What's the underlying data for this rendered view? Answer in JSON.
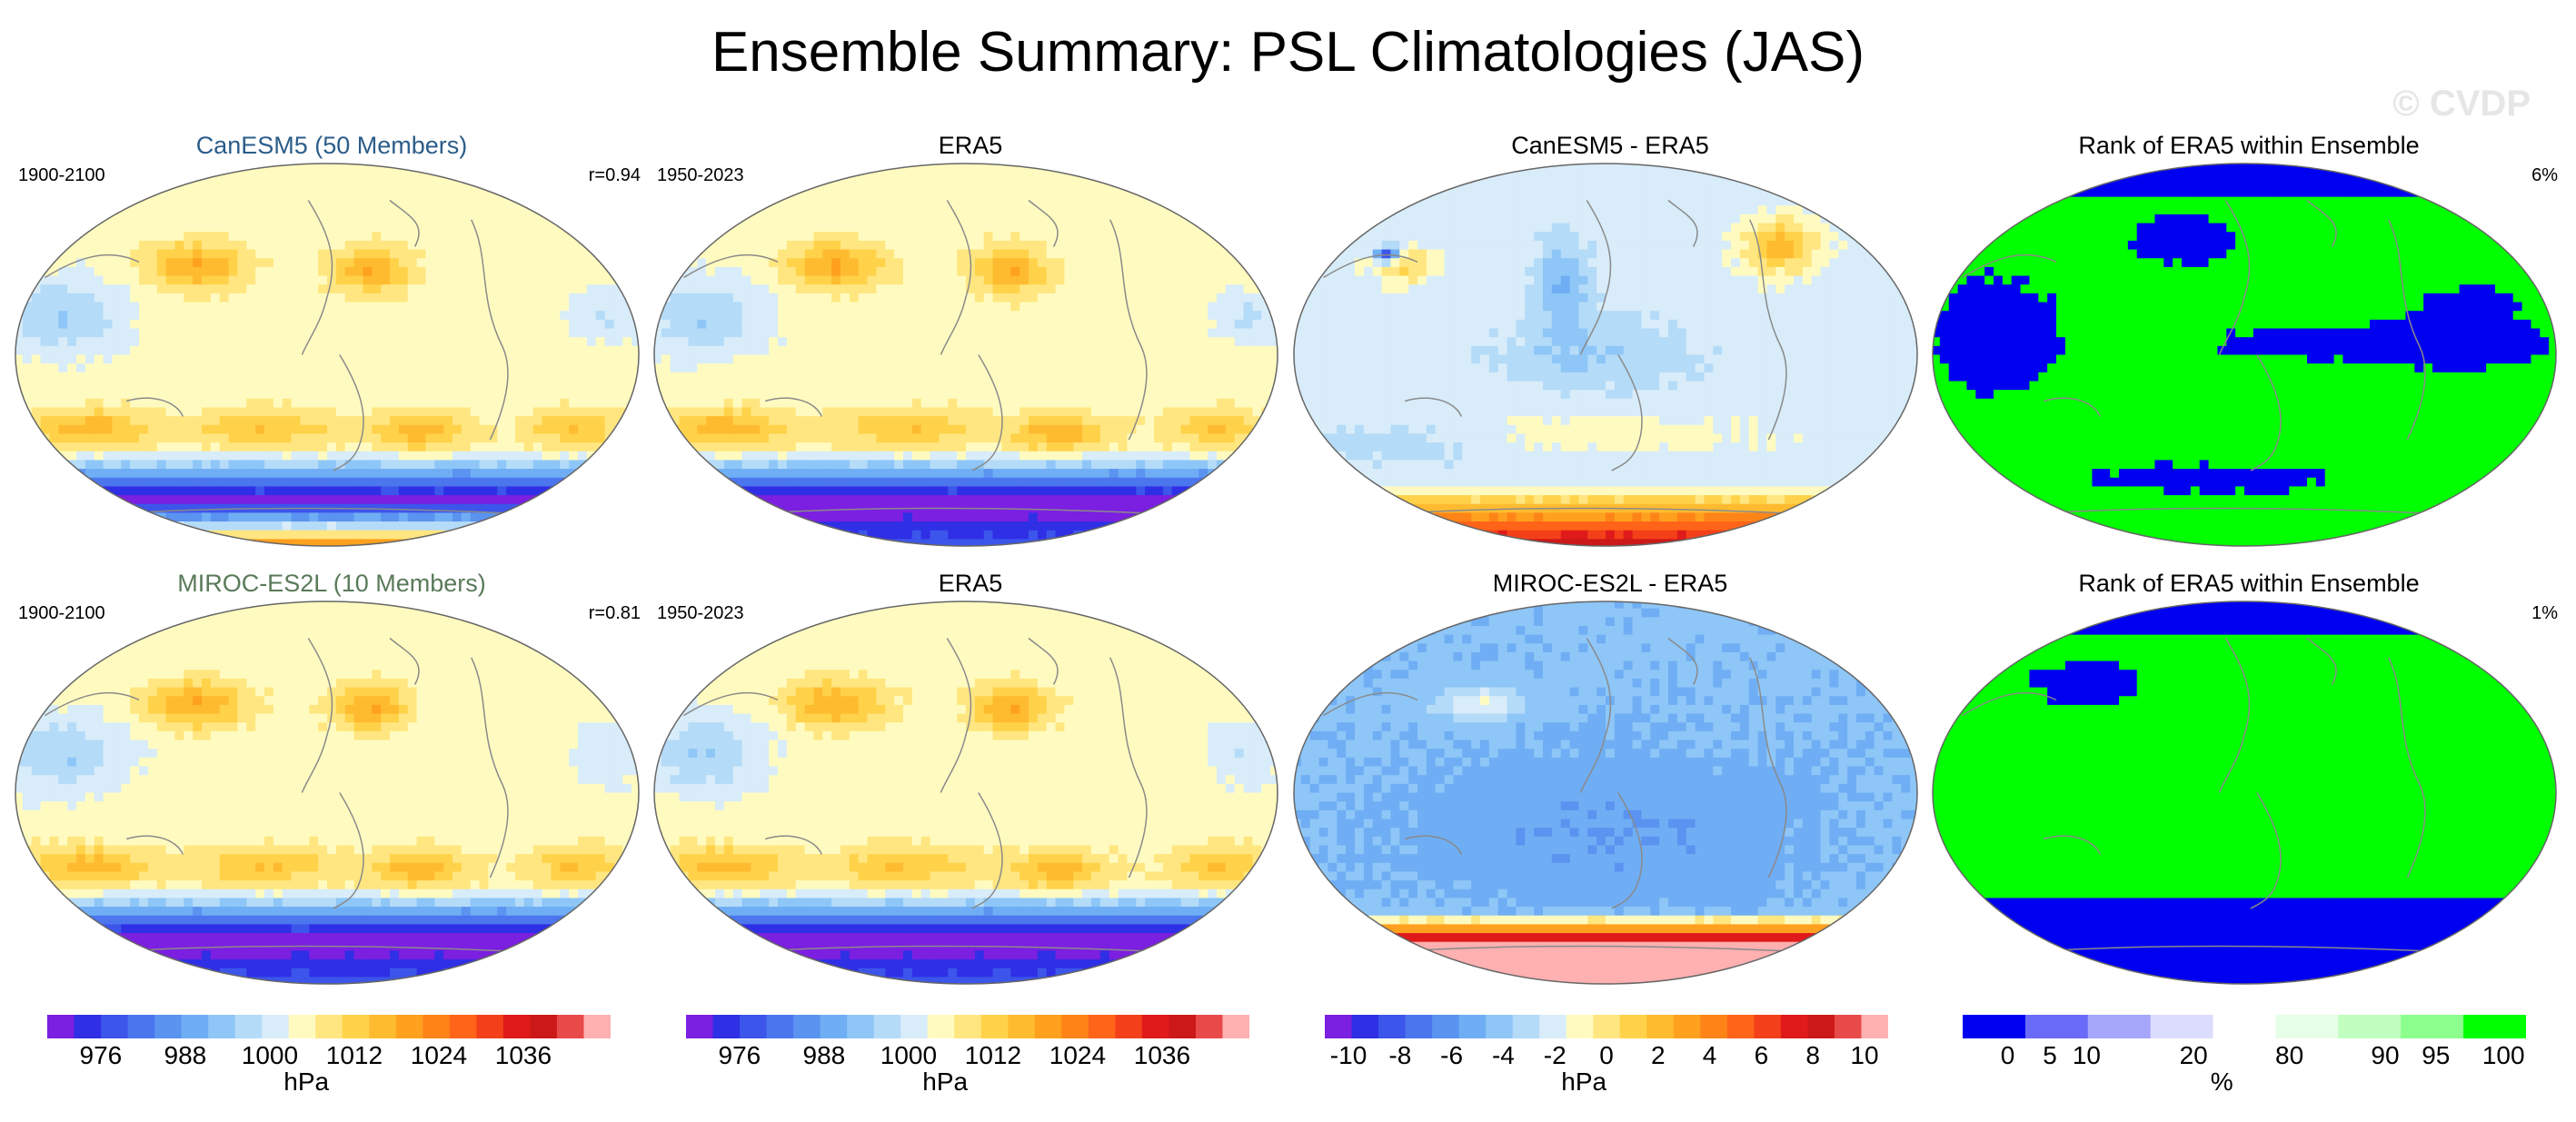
{
  "title": "Ensemble Summary: PSL Climatologies (JAS)",
  "watermark": "© CVDP",
  "colors": {
    "psl_scale": [
      "#7b1fe0",
      "#2f2fe6",
      "#3c55ea",
      "#4b76ee",
      "#5a93f0",
      "#6faef4",
      "#8ec6f7",
      "#b4dbf8",
      "#d8ecf9",
      "#fffbc0",
      "#ffe680",
      "#ffd24a",
      "#ffbb30",
      "#ffa01e",
      "#ff8418",
      "#ff6418",
      "#f4401a",
      "#e01a1a",
      "#cc1818",
      "#e84a4a",
      "#ffb0b0"
    ],
    "rank_scale": [
      "#0000f0",
      "#6a6af8",
      "#a6a6fa",
      "#dcdcfc",
      "#ffffff",
      "#e6ffe6",
      "#c0ffc0",
      "#8cff8c",
      "#00ff00"
    ],
    "land_line": "#8a8a8a",
    "blue_title": "#2b5d8a",
    "green_title": "#5a7a5a"
  },
  "panels": [
    {
      "title": "CanESM5 (50 Members)",
      "left_label": "1900-2100",
      "right_label": "r=0.94",
      "kind": "psl",
      "variant": 0
    },
    {
      "title": "ERA5",
      "left_label": "1950-2023",
      "right_label": "",
      "kind": "psl",
      "variant": 1
    },
    {
      "title": "CanESM5 - ERA5",
      "left_label": "",
      "right_label": "",
      "kind": "diff",
      "variant": 2
    },
    {
      "title": "Rank of ERA5 within Ensemble",
      "left_label": "",
      "right_label": "6%",
      "kind": "rank",
      "variant": 3
    },
    {
      "title": "MIROC-ES2L (10 Members)",
      "left_label": "1900-2100",
      "right_label": "r=0.81",
      "kind": "psl",
      "variant": 4
    },
    {
      "title": "ERA5",
      "left_label": "1950-2023",
      "right_label": "",
      "kind": "psl",
      "variant": 5
    },
    {
      "title": "MIROC-ES2L - ERA5",
      "left_label": "",
      "right_label": "",
      "kind": "diff2",
      "variant": 6
    },
    {
      "title": "Rank of ERA5 within Ensemble",
      "left_label": "",
      "right_label": "1%",
      "kind": "rank2",
      "variant": 7
    }
  ],
  "colorbars": [
    {
      "unit": "hPa",
      "ticks": [
        "976",
        "988",
        "1000",
        "1012",
        "1024",
        "1036"
      ],
      "scale": "psl"
    },
    {
      "unit": "hPa",
      "ticks": [
        "976",
        "988",
        "1000",
        "1012",
        "1024",
        "1036"
      ],
      "scale": "psl"
    },
    {
      "unit": "hPa",
      "ticks": [
        "-10",
        "-8",
        "-6",
        "-4",
        "-2",
        "0",
        "2",
        "4",
        "6",
        "8",
        "10"
      ],
      "scale": "psl"
    },
    {
      "unit": "%",
      "ticks": [
        "0",
        "5",
        "10",
        "20",
        "80",
        "90",
        "95",
        "100"
      ],
      "scale": "rank"
    }
  ],
  "chart_data": {
    "type": "heatmap",
    "title": "Ensemble Summary: PSL Climatologies (JAS)",
    "projection": "Robinson-like global maps, 2 rows x 4 columns",
    "psl_contour_levels_hPa": [
      976,
      988,
      1000,
      1012,
      1024,
      1036
    ],
    "difference_levels_hPa": [
      -10,
      -8,
      -6,
      -4,
      -2,
      0,
      2,
      4,
      6,
      8,
      10
    ],
    "rank_levels_percent": [
      0,
      5,
      10,
      20,
      80,
      90,
      95,
      100
    ],
    "maps": [
      {
        "row": 1,
        "col": 1,
        "title": "CanESM5 (50 Members)",
        "period": "1900-2100",
        "pattern_correlation": 0.94
      },
      {
        "row": 1,
        "col": 2,
        "title": "ERA5",
        "period": "1950-2023"
      },
      {
        "row": 1,
        "col": 3,
        "title": "CanESM5 - ERA5"
      },
      {
        "row": 1,
        "col": 4,
        "title": "Rank of ERA5 within Ensemble",
        "percent_label": "6%"
      },
      {
        "row": 2,
        "col": 1,
        "title": "MIROC-ES2L (10 Members)",
        "period": "1900-2100",
        "pattern_correlation": 0.81
      },
      {
        "row": 2,
        "col": 2,
        "title": "ERA5",
        "period": "1950-2023"
      },
      {
        "row": 2,
        "col": 3,
        "title": "MIROC-ES2L - ERA5"
      },
      {
        "row": 2,
        "col": 4,
        "title": "Rank of ERA5 within Ensemble",
        "percent_label": "1%"
      }
    ]
  }
}
